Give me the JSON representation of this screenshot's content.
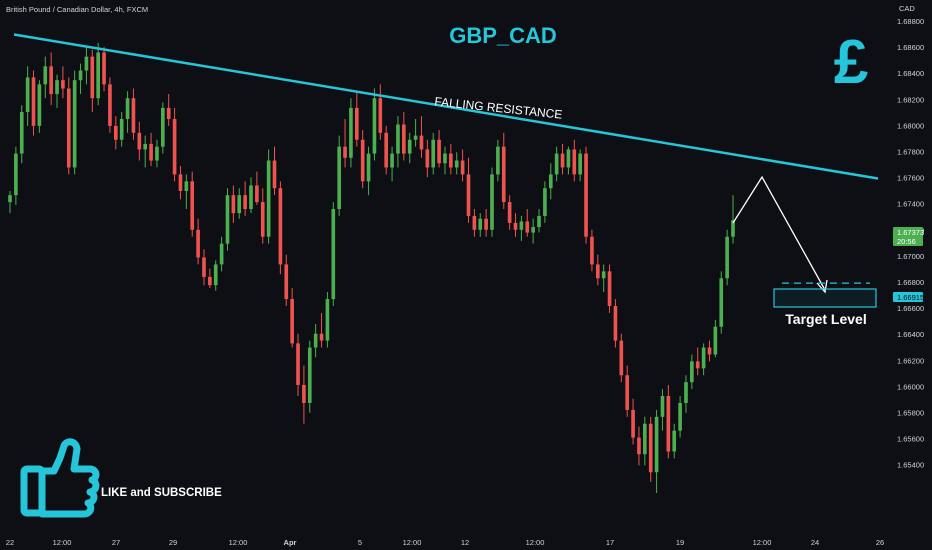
{
  "header": {
    "symbol_info": "British Pound / Canadian Dollar, 4h, FXCM"
  },
  "title": "GBP_CAD",
  "currency_icon": "pound-sign-icon",
  "currency_symbol": "£",
  "annotations": {
    "resistance_label": "FALLING RESISTANCE",
    "target_label": "Target Level",
    "cta_label": "LIKE and SUBSCRIBE",
    "cta_icon": "thumbs-up-icon"
  },
  "price_axis": {
    "unit": "CAD",
    "ticks": [
      "1.68800",
      "1.68600",
      "1.68400",
      "1.68200",
      "1.68000",
      "1.67800",
      "1.67600",
      "1.67400",
      "1.67200",
      "1.67000",
      "1.66800",
      "1.66600",
      "1.66400",
      "1.66200",
      "1.66000",
      "1.65800",
      "1.65600",
      "1.65400"
    ],
    "current_price": "1.67373",
    "countdown": "20:56",
    "target_price": "1.66915"
  },
  "time_axis": {
    "ticks": [
      "22",
      "12:00",
      "27",
      "29",
      "12:00",
      "Apr",
      "5",
      "12:00",
      "12",
      "12:00",
      "17",
      "19",
      "12:00",
      "24",
      "26"
    ]
  },
  "colors": {
    "background": "#0d0f14",
    "bull": "#4caf50",
    "bear": "#ef5350",
    "accent": "#26c6da",
    "text": "#d1d4dc"
  },
  "chart_data": {
    "type": "candlestick",
    "title": "GBP_CAD",
    "xlabel": "",
    "ylabel": "CAD",
    "ylim": [
      1.6532,
      1.689
    ],
    "grid": false,
    "legend": "none",
    "resistance_line": {
      "start": 1.6871,
      "end": 1.6767
    },
    "target_level": 1.66915,
    "last_price": 1.67373,
    "ohlc": [
      [
        1.675,
        1.6758,
        1.6742,
        1.6755
      ],
      [
        1.6755,
        1.679,
        1.6748,
        1.6785
      ],
      [
        1.6785,
        1.682,
        1.6778,
        1.6815
      ],
      [
        1.6815,
        1.6848,
        1.6805,
        1.684
      ],
      [
        1.684,
        1.6845,
        1.6798,
        1.6805
      ],
      [
        1.6805,
        1.6838,
        1.68,
        1.6835
      ],
      [
        1.6835,
        1.6855,
        1.6825,
        1.6848
      ],
      [
        1.6848,
        1.6858,
        1.682,
        1.6828
      ],
      [
        1.6828,
        1.6842,
        1.6818,
        1.6838
      ],
      [
        1.6838,
        1.6848,
        1.6825,
        1.6832
      ],
      [
        1.6832,
        1.684,
        1.677,
        1.6775
      ],
      [
        1.6775,
        1.6845,
        1.677,
        1.6838
      ],
      [
        1.6838,
        1.685,
        1.6828,
        1.6845
      ],
      [
        1.6845,
        1.6862,
        1.6835,
        1.6855
      ],
      [
        1.6855,
        1.686,
        1.6815,
        1.6825
      ],
      [
        1.6825,
        1.6865,
        1.682,
        1.6858
      ],
      [
        1.6858,
        1.6862,
        1.683,
        1.6835
      ],
      [
        1.6835,
        1.684,
        1.68,
        1.6805
      ],
      [
        1.6805,
        1.6812,
        1.6788,
        1.6795
      ],
      [
        1.6795,
        1.6815,
        1.679,
        1.681
      ],
      [
        1.681,
        1.683,
        1.68,
        1.6825
      ],
      [
        1.6825,
        1.6832,
        1.6795,
        1.68
      ],
      [
        1.68,
        1.6808,
        1.678,
        1.6788
      ],
      [
        1.6788,
        1.6798,
        1.6775,
        1.6792
      ],
      [
        1.6792,
        1.68,
        1.6776,
        1.678
      ],
      [
        1.678,
        1.6795,
        1.6775,
        1.679
      ],
      [
        1.679,
        1.6822,
        1.6785,
        1.6818
      ],
      [
        1.6818,
        1.6828,
        1.6805,
        1.681
      ],
      [
        1.681,
        1.6818,
        1.6765,
        1.677
      ],
      [
        1.677,
        1.6776,
        1.6752,
        1.6758
      ],
      [
        1.6758,
        1.677,
        1.6745,
        1.6765
      ],
      [
        1.6765,
        1.6772,
        1.6725,
        1.673
      ],
      [
        1.673,
        1.6738,
        1.6705,
        1.671
      ],
      [
        1.671,
        1.6716,
        1.669,
        1.6696
      ],
      [
        1.6696,
        1.6702,
        1.6688,
        1.669
      ],
      [
        1.669,
        1.6708,
        1.6686,
        1.6705
      ],
      [
        1.6705,
        1.6725,
        1.67,
        1.672
      ],
      [
        1.672,
        1.676,
        1.6715,
        1.6755
      ],
      [
        1.6755,
        1.6762,
        1.6735,
        1.6742
      ],
      [
        1.6742,
        1.676,
        1.6738,
        1.6755
      ],
      [
        1.6755,
        1.6765,
        1.674,
        1.6745
      ],
      [
        1.6745,
        1.6768,
        1.6742,
        1.6762
      ],
      [
        1.6762,
        1.6772,
        1.6748,
        1.675
      ],
      [
        1.675,
        1.676,
        1.672,
        1.6725
      ],
      [
        1.6725,
        1.6788,
        1.672,
        1.678
      ],
      [
        1.678,
        1.679,
        1.6755,
        1.676
      ],
      [
        1.676,
        1.6765,
        1.6698,
        1.6705
      ],
      [
        1.6705,
        1.6712,
        1.6675,
        1.668
      ],
      [
        1.668,
        1.6688,
        1.6645,
        1.6648
      ],
      [
        1.6648,
        1.6655,
        1.661,
        1.6618
      ],
      [
        1.6618,
        1.6632,
        1.659,
        1.6605
      ],
      [
        1.6605,
        1.665,
        1.6598,
        1.6645
      ],
      [
        1.6645,
        1.6662,
        1.6638,
        1.6655
      ],
      [
        1.6655,
        1.667,
        1.6645,
        1.665
      ],
      [
        1.665,
        1.6685,
        1.6645,
        1.668
      ],
      [
        1.668,
        1.675,
        1.6675,
        1.6745
      ],
      [
        1.6745,
        1.6798,
        1.674,
        1.679
      ],
      [
        1.679,
        1.681,
        1.6775,
        1.6782
      ],
      [
        1.6782,
        1.6825,
        1.6775,
        1.6818
      ],
      [
        1.6818,
        1.683,
        1.679,
        1.6795
      ],
      [
        1.6795,
        1.6802,
        1.676,
        1.6765
      ],
      [
        1.6765,
        1.679,
        1.6755,
        1.6785
      ],
      [
        1.6785,
        1.6832,
        1.678,
        1.6825
      ],
      [
        1.6825,
        1.6835,
        1.6795,
        1.68
      ],
      [
        1.68,
        1.6805,
        1.677,
        1.6775
      ],
      [
        1.6775,
        1.679,
        1.6765,
        1.6785
      ],
      [
        1.6785,
        1.6812,
        1.6775,
        1.6806
      ],
      [
        1.6806,
        1.6815,
        1.678,
        1.6785
      ],
      [
        1.6785,
        1.68,
        1.6778,
        1.6795
      ],
      [
        1.6795,
        1.681,
        1.679,
        1.6798
      ],
      [
        1.6798,
        1.6812,
        1.6782,
        1.6788
      ],
      [
        1.6788,
        1.6795,
        1.6768,
        1.6775
      ],
      [
        1.6775,
        1.68,
        1.677,
        1.6795
      ],
      [
        1.6795,
        1.6802,
        1.6775,
        1.6778
      ],
      [
        1.6778,
        1.679,
        1.677,
        1.6785
      ],
      [
        1.6785,
        1.6792,
        1.677,
        1.6775
      ],
      [
        1.6775,
        1.6786,
        1.677,
        1.678
      ],
      [
        1.678,
        1.6788,
        1.6765,
        1.677
      ],
      [
        1.677,
        1.6782,
        1.6735,
        1.674
      ],
      [
        1.674,
        1.6745,
        1.6725,
        1.673
      ],
      [
        1.673,
        1.6742,
        1.6725,
        1.6738
      ],
      [
        1.6738,
        1.6745,
        1.6725,
        1.673
      ],
      [
        1.673,
        1.6775,
        1.6725,
        1.677
      ],
      [
        1.677,
        1.6795,
        1.6765,
        1.679
      ],
      [
        1.679,
        1.68,
        1.6745,
        1.675
      ],
      [
        1.675,
        1.6755,
        1.673,
        1.6735
      ],
      [
        1.6735,
        1.6742,
        1.6725,
        1.673
      ],
      [
        1.673,
        1.674,
        1.6722,
        1.6736
      ],
      [
        1.6736,
        1.6745,
        1.6725,
        1.6728
      ],
      [
        1.6728,
        1.6738,
        1.672,
        1.6732
      ],
      [
        1.6732,
        1.6745,
        1.6728,
        1.674
      ],
      [
        1.674,
        1.6765,
        1.6735,
        1.676
      ],
      [
        1.676,
        1.6778,
        1.6752,
        1.677
      ],
      [
        1.677,
        1.679,
        1.6765,
        1.6785
      ],
      [
        1.6785,
        1.6792,
        1.677,
        1.6775
      ],
      [
        1.6775,
        1.679,
        1.677,
        1.6788
      ],
      [
        1.6788,
        1.6795,
        1.6765,
        1.677
      ],
      [
        1.677,
        1.6788,
        1.6765,
        1.6785
      ],
      [
        1.6785,
        1.679,
        1.672,
        1.6725
      ],
      [
        1.6725,
        1.673,
        1.67,
        1.6705
      ],
      [
        1.6705,
        1.6712,
        1.669,
        1.6695
      ],
      [
        1.6695,
        1.6705,
        1.6685,
        1.67
      ],
      [
        1.67,
        1.6705,
        1.667,
        1.6675
      ],
      [
        1.6675,
        1.668,
        1.6645,
        1.665
      ],
      [
        1.665,
        1.6655,
        1.662,
        1.6625
      ],
      [
        1.6625,
        1.6632,
        1.6595,
        1.66
      ],
      [
        1.66,
        1.6608,
        1.6575,
        1.658
      ],
      [
        1.658,
        1.6588,
        1.656,
        1.6568
      ],
      [
        1.6568,
        1.6595,
        1.656,
        1.659
      ],
      [
        1.659,
        1.6595,
        1.6548,
        1.6555
      ],
      [
        1.6555,
        1.66,
        1.654,
        1.6595
      ],
      [
        1.6595,
        1.6615,
        1.6585,
        1.661
      ],
      [
        1.661,
        1.6618,
        1.6565,
        1.657
      ],
      [
        1.657,
        1.659,
        1.6565,
        1.6585
      ],
      [
        1.6585,
        1.661,
        1.658,
        1.6605
      ],
      [
        1.6605,
        1.6625,
        1.6598,
        1.662
      ],
      [
        1.662,
        1.664,
        1.6615,
        1.6635
      ],
      [
        1.6635,
        1.6645,
        1.6625,
        1.663
      ],
      [
        1.663,
        1.6648,
        1.6625,
        1.6645
      ],
      [
        1.6645,
        1.665,
        1.6635,
        1.664
      ],
      [
        1.664,
        1.6665,
        1.6638,
        1.666
      ],
      [
        1.666,
        1.67,
        1.6655,
        1.6695
      ],
      [
        1.6695,
        1.673,
        1.669,
        1.6725
      ],
      [
        1.6725,
        1.6755,
        1.672,
        1.6737
      ]
    ]
  }
}
